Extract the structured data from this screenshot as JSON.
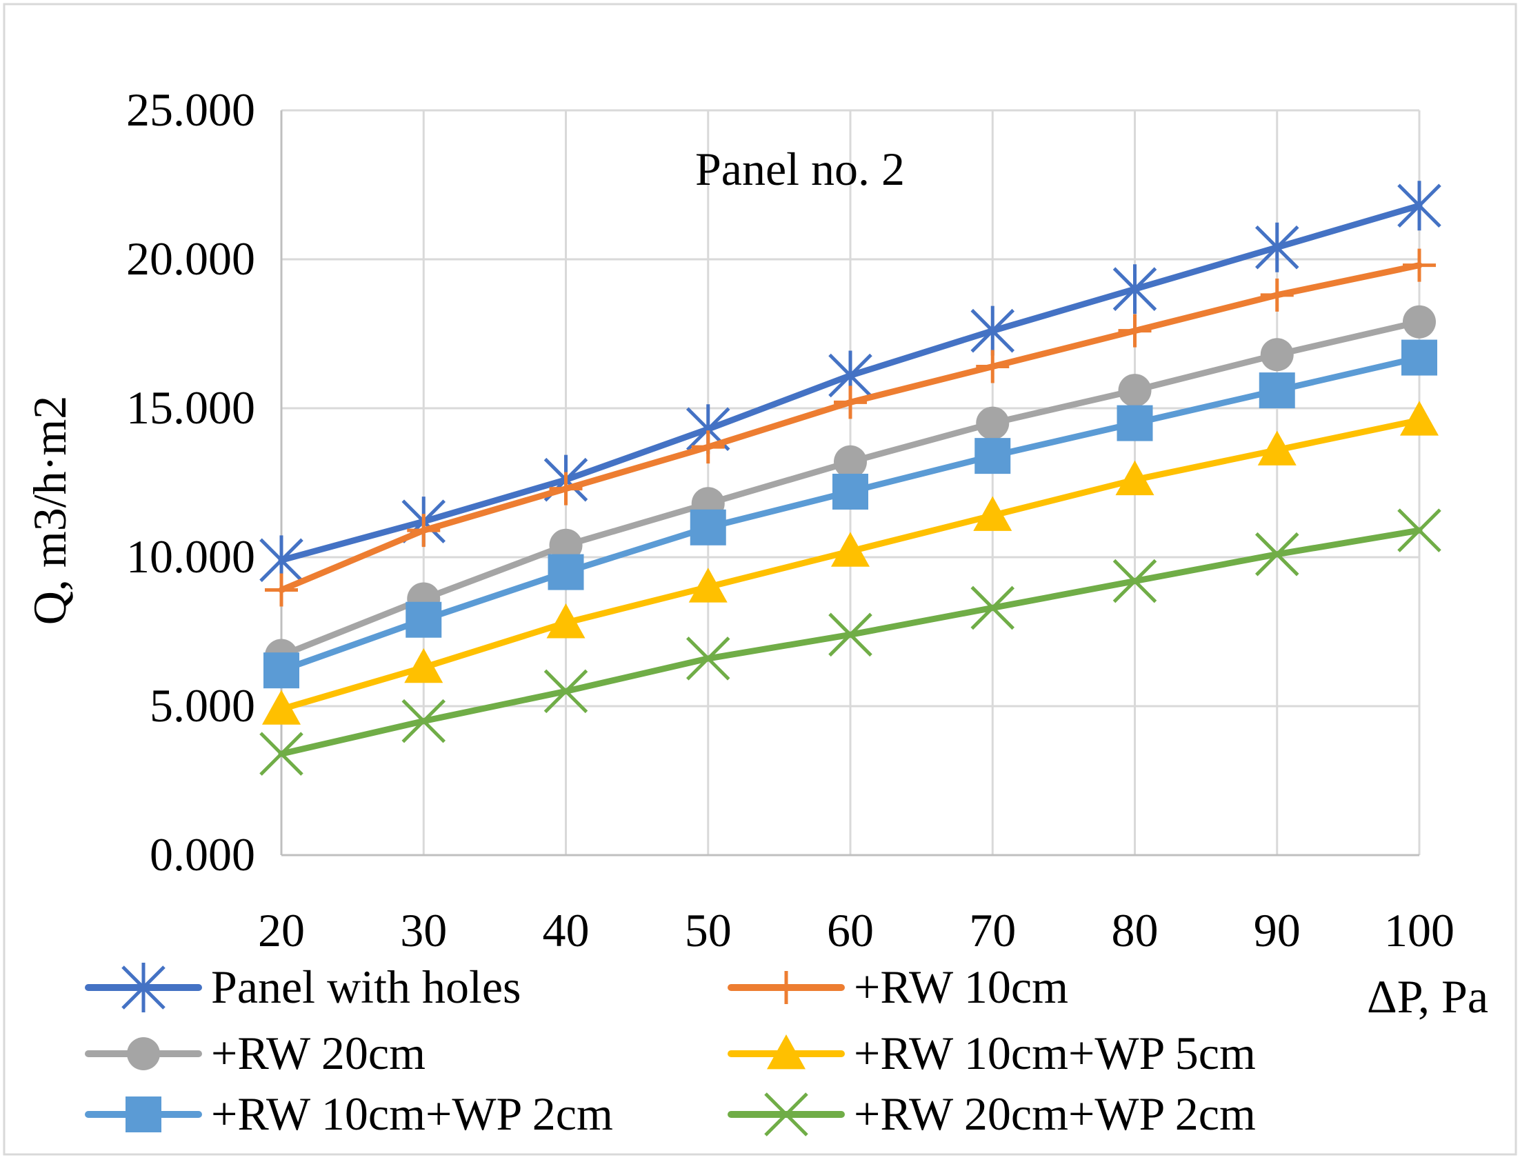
{
  "chart_data": {
    "type": "line",
    "title": "Panel no. 2",
    "xlabel": "ΔP, Pa",
    "ylabel": "Q, m3/h·m2",
    "x": [
      20,
      30,
      40,
      50,
      60,
      70,
      80,
      90,
      100
    ],
    "xlim": [
      20,
      100
    ],
    "ylim": [
      0,
      25
    ],
    "yticks": [
      0,
      5,
      10,
      15,
      20,
      25
    ],
    "ytick_labels": [
      "0.000",
      "5.000",
      "10.000",
      "15.000",
      "20.000",
      "25.000"
    ],
    "xtick_labels": [
      "20",
      "30",
      "40",
      "50",
      "60",
      "70",
      "80",
      "90",
      "100"
    ],
    "grid": true,
    "legend_position": "bottom",
    "series": [
      {
        "name": "Panel with holes",
        "color": "#4472C4",
        "marker": "asterisk",
        "values": [
          9.9,
          11.2,
          12.6,
          14.3,
          16.1,
          17.6,
          19.0,
          20.4,
          21.8
        ]
      },
      {
        "name": "+RW 10cm",
        "color": "#ED7D31",
        "marker": "plus",
        "values": [
          8.9,
          10.9,
          12.3,
          13.7,
          15.2,
          16.4,
          17.6,
          18.8,
          19.8
        ]
      },
      {
        "name": "+RW 20cm",
        "color": "#A5A5A5",
        "marker": "circle",
        "values": [
          6.7,
          8.6,
          10.4,
          11.8,
          13.2,
          14.5,
          15.6,
          16.8,
          17.9
        ]
      },
      {
        "name": "+RW 10cm+WP 5cm",
        "color": "#FFC000",
        "marker": "triangle",
        "values": [
          4.9,
          6.3,
          7.8,
          9.0,
          10.2,
          11.4,
          12.6,
          13.6,
          14.6
        ]
      },
      {
        "name": "+RW 10cm+WP 2cm",
        "color": "#5B9BD5",
        "marker": "square",
        "values": [
          6.2,
          7.9,
          9.5,
          11.0,
          12.2,
          13.4,
          14.5,
          15.6,
          16.7
        ]
      },
      {
        "name": "+RW 20cm+WP 2cm",
        "color": "#70AD47",
        "marker": "x",
        "values": [
          3.4,
          4.5,
          5.5,
          6.6,
          7.4,
          8.3,
          9.2,
          10.1,
          10.9
        ]
      }
    ]
  }
}
